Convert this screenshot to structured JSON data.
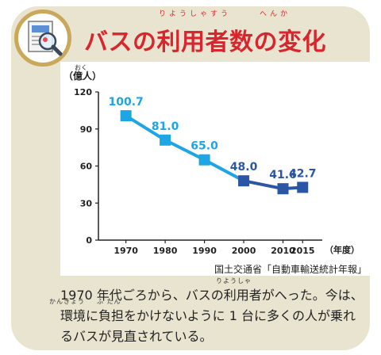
{
  "title": "バスの利用者数の変化",
  "title_ruby": {
    "riyousha": "りようしゃすう",
    "henka": "へんか"
  },
  "chart_data": {
    "type": "line",
    "ylabel": "（億人）",
    "ylabel_ruby": "おく",
    "xlabel": "（年度）",
    "categories": [
      "1970",
      "1980",
      "1990",
      "2000",
      "2010",
      "2015"
    ],
    "x": [
      1970,
      1980,
      1990,
      2000,
      2010,
      2015
    ],
    "values": [
      100.7,
      81.0,
      65.0,
      48.0,
      41.6,
      42.7
    ],
    "value_labels": [
      "100.7",
      "81.0",
      "65.0",
      "48.0",
      "41.6",
      "42.7"
    ],
    "ylim": [
      0,
      120
    ],
    "yticks": [
      0,
      30,
      60,
      90,
      120
    ],
    "grid": false,
    "colors": {
      "early": "#1ea5e3",
      "late": "#2b56a6"
    }
  },
  "source": "国土交通省「自動車輸送統計年報」",
  "body": {
    "line1": "1970 年代ごろから、バスの利用者がへった。今は、",
    "line2": "環境に負担をかけないように 1 台に多くの人が乗れ",
    "line3": "るバスが見直されている。",
    "ruby_riyousha": "りようしゃ",
    "ruby_kankyou": "かんきょう",
    "ruby_futan": "ふ たん"
  },
  "colors": {
    "card": "#e9e4cf",
    "title": "#d8262f",
    "badge_ring": "#c9a85a"
  }
}
